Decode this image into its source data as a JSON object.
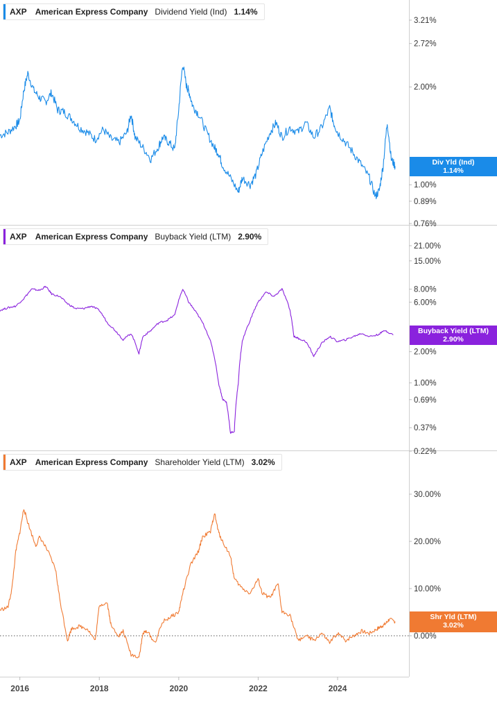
{
  "chart_data": [
    {
      "type": "line",
      "ticker": "AXP",
      "company": "American Express Company",
      "metric": "Dividend Yield (Ind)",
      "current_value": "1.14%",
      "tag_label": "Div Yld (Ind)",
      "tag_value": "1.14%",
      "color": "#1a8be8",
      "y_scale": "log",
      "ylim": [
        0.76,
        3.5
      ],
      "y_ticks": [
        {
          "value": 3.21,
          "label": "3.21%"
        },
        {
          "value": 2.72,
          "label": "2.72%"
        },
        {
          "value": 2.0,
          "label": "2.00%"
        },
        {
          "value": 1.0,
          "label": "1.00%"
        },
        {
          "value": 0.89,
          "label": "0.89%"
        },
        {
          "value": 0.76,
          "label": "0.76%"
        }
      ],
      "x": [
        2015.5,
        2015.7,
        2015.9,
        2016.0,
        2016.1,
        2016.2,
        2016.35,
        2016.5,
        2016.65,
        2016.8,
        2016.95,
        2017.1,
        2017.3,
        2017.5,
        2017.7,
        2017.9,
        2018.1,
        2018.3,
        2018.5,
        2018.7,
        2018.8,
        2018.9,
        2019.1,
        2019.3,
        2019.5,
        2019.6,
        2019.75,
        2019.9,
        2020.0,
        2020.1,
        2020.2,
        2020.25,
        2020.35,
        2020.5,
        2020.7,
        2020.9,
        2021.0,
        2021.1,
        2021.3,
        2021.5,
        2021.6,
        2021.8,
        2021.95,
        2022.1,
        2022.3,
        2022.45,
        2022.6,
        2022.8,
        2023.0,
        2023.2,
        2023.4,
        2023.6,
        2023.8,
        2023.9,
        2024.0,
        2024.2,
        2024.4,
        2024.6,
        2024.8,
        2024.95,
        2025.05,
        2025.15,
        2025.25,
        2025.35,
        2025.45
      ],
      "values": [
        1.42,
        1.45,
        1.52,
        1.58,
        1.95,
        2.2,
        1.95,
        1.85,
        1.8,
        1.92,
        1.7,
        1.68,
        1.6,
        1.5,
        1.45,
        1.38,
        1.48,
        1.38,
        1.35,
        1.45,
        1.65,
        1.4,
        1.3,
        1.2,
        1.32,
        1.4,
        1.35,
        1.28,
        1.7,
        2.35,
        2.0,
        1.95,
        1.75,
        1.65,
        1.45,
        1.3,
        1.25,
        1.15,
        1.05,
        0.95,
        1.05,
        1.0,
        1.08,
        1.25,
        1.45,
        1.55,
        1.4,
        1.5,
        1.45,
        1.55,
        1.4,
        1.5,
        1.72,
        1.55,
        1.45,
        1.35,
        1.25,
        1.15,
        1.05,
        0.92,
        0.96,
        1.15,
        1.55,
        1.2,
        1.14
      ],
      "xlim": [
        2015.5,
        2025.5
      ]
    },
    {
      "type": "line",
      "ticker": "AXP",
      "company": "American Express Company",
      "metric": "Buyback Yield (LTM)",
      "current_value": "2.90%",
      "tag_label": "Buyback Yield (LTM)",
      "tag_value": "2.90%",
      "color": "#8a22dd",
      "y_scale": "log",
      "ylim": [
        0.22,
        28
      ],
      "y_ticks": [
        {
          "value": 21.0,
          "label": "21.00%"
        },
        {
          "value": 15.0,
          "label": "15.00%"
        },
        {
          "value": 8.0,
          "label": "8.00%"
        },
        {
          "value": 6.0,
          "label": "6.00%"
        },
        {
          "value": 2.0,
          "label": "2.00%"
        },
        {
          "value": 1.0,
          "label": "1.00%"
        },
        {
          "value": 0.69,
          "label": "0.69%"
        },
        {
          "value": 0.37,
          "label": "0.37%"
        },
        {
          "value": 0.22,
          "label": "0.22%"
        }
      ],
      "x": [
        2015.5,
        2015.7,
        2015.9,
        2016.1,
        2016.3,
        2016.5,
        2016.65,
        2016.8,
        2017.0,
        2017.2,
        2017.4,
        2017.6,
        2017.8,
        2018.0,
        2018.2,
        2018.4,
        2018.6,
        2018.8,
        2019.0,
        2019.1,
        2019.3,
        2019.5,
        2019.7,
        2019.9,
        2020.1,
        2020.25,
        2020.4,
        2020.6,
        2020.8,
        2021.0,
        2021.1,
        2021.2,
        2021.3,
        2021.4,
        2021.5,
        2021.6,
        2021.8,
        2022.0,
        2022.2,
        2022.4,
        2022.6,
        2022.8,
        2022.9,
        2023.0,
        2023.2,
        2023.4,
        2023.6,
        2023.8,
        2024.0,
        2024.2,
        2024.4,
        2024.6,
        2024.8,
        2025.0,
        2025.2,
        2025.4
      ],
      "values": [
        5.0,
        5.3,
        5.5,
        6.5,
        8.0,
        7.8,
        8.5,
        7.2,
        6.8,
        5.8,
        5.2,
        5.2,
        5.5,
        5.0,
        3.8,
        3.2,
        2.6,
        3.0,
        1.9,
        2.8,
        3.2,
        3.8,
        4.0,
        4.5,
        8.0,
        6.0,
        5.0,
        3.8,
        2.5,
        1.0,
        0.7,
        0.65,
        0.33,
        0.34,
        1.0,
        2.5,
        4.0,
        6.0,
        7.5,
        6.8,
        8.0,
        5.0,
        2.8,
        2.7,
        2.5,
        1.8,
        2.4,
        2.8,
        2.5,
        2.6,
        2.8,
        3.0,
        2.8,
        2.9,
        3.2,
        2.9
      ],
      "xlim": [
        2015.5,
        2025.5
      ]
    },
    {
      "type": "line",
      "ticker": "AXP",
      "company": "American Express Company",
      "metric": "Shareholder Yield (LTM)",
      "current_value": "3.02%",
      "tag_label": "Shr Yld (LTM)",
      "tag_value": "3.02%",
      "color": "#f07a32",
      "y_scale": "linear",
      "ylim": [
        -5,
        34
      ],
      "y_ticks": [
        {
          "value": 30.0,
          "label": "30.00%"
        },
        {
          "value": 20.0,
          "label": "20.00%"
        },
        {
          "value": 10.0,
          "label": "10.00%"
        },
        {
          "value": 0.0,
          "label": "0.00%"
        }
      ],
      "zero_line": true,
      "x": [
        2015.5,
        2015.7,
        2015.8,
        2015.9,
        2016.0,
        2016.1,
        2016.2,
        2016.4,
        2016.5,
        2016.7,
        2016.9,
        2017.0,
        2017.2,
        2017.3,
        2017.5,
        2017.7,
        2017.9,
        2018.0,
        2018.2,
        2018.3,
        2018.5,
        2018.6,
        2018.8,
        2019.0,
        2019.1,
        2019.2,
        2019.4,
        2019.6,
        2019.8,
        2020.0,
        2020.1,
        2020.3,
        2020.5,
        2020.6,
        2020.8,
        2020.9,
        2021.0,
        2021.1,
        2021.3,
        2021.4,
        2021.6,
        2021.8,
        2022.0,
        2022.1,
        2022.3,
        2022.5,
        2022.6,
        2022.8,
        2023.0,
        2023.2,
        2023.4,
        2023.6,
        2023.8,
        2024.0,
        2024.2,
        2024.4,
        2024.6,
        2024.8,
        2025.0,
        2025.1,
        2025.2,
        2025.3,
        2025.45
      ],
      "values": [
        5.5,
        6.0,
        10.0,
        18.0,
        22.0,
        27.0,
        24.0,
        19.0,
        21.0,
        18.0,
        14.0,
        8.0,
        -1.0,
        1.5,
        2.0,
        1.5,
        -1.0,
        6.5,
        7.0,
        2.0,
        0.0,
        1.0,
        -4.0,
        -4.5,
        0.5,
        1.0,
        -1.5,
        3.0,
        4.0,
        5.0,
        9.0,
        15.0,
        18.0,
        21.0,
        22.0,
        26.0,
        22.0,
        20.0,
        17.0,
        12.0,
        10.0,
        9.0,
        12.0,
        9.0,
        8.0,
        11.0,
        5.0,
        4.5,
        -1.0,
        0.0,
        -1.0,
        0.5,
        -1.5,
        0.5,
        -1.0,
        0.0,
        1.0,
        0.5,
        1.5,
        2.0,
        2.5,
        3.5,
        3.02
      ],
      "xlim": [
        2015.5,
        2025.5
      ]
    }
  ],
  "x_axis": {
    "ticks": [
      {
        "value": 2016,
        "label": "2016"
      },
      {
        "value": 2018,
        "label": "2018"
      },
      {
        "value": 2020,
        "label": "2020"
      },
      {
        "value": 2022,
        "label": "2022"
      },
      {
        "value": 2024,
        "label": "2024"
      }
    ]
  }
}
